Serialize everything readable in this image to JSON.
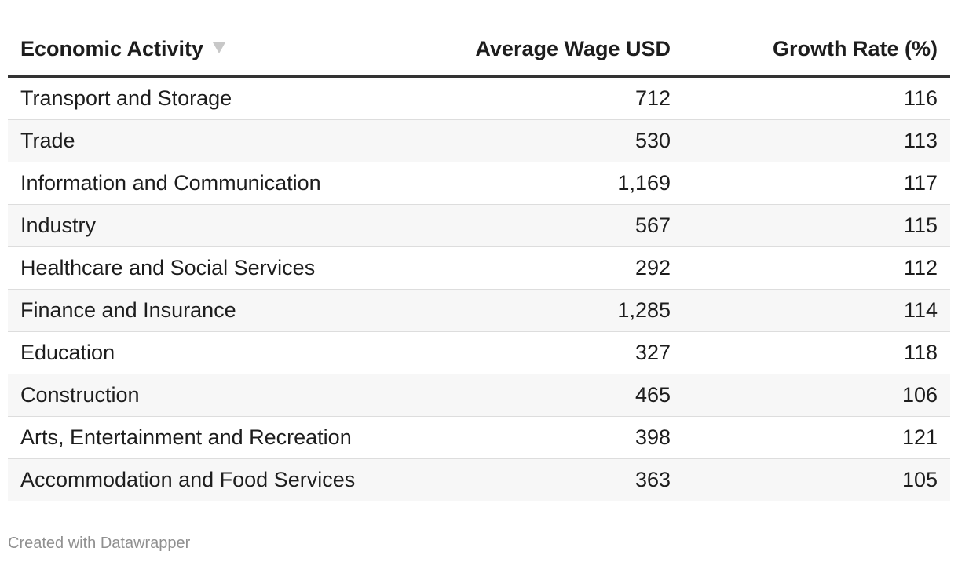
{
  "chart_data": {
    "type": "table",
    "columns": [
      "Economic Activity",
      "Average Wage USD",
      "Growth Rate (%)"
    ],
    "sorted_column": "Economic Activity",
    "sort_icon": "sort-descending-icon",
    "rows": [
      [
        "Transport and Storage",
        "712",
        "116"
      ],
      [
        "Trade",
        "530",
        "113"
      ],
      [
        "Information and Communication",
        "1,169",
        "117"
      ],
      [
        "Industry",
        "567",
        "115"
      ],
      [
        "Healthcare and Social Services",
        "292",
        "112"
      ],
      [
        "Finance and Insurance",
        "1,285",
        "114"
      ],
      [
        "Education",
        "327",
        "118"
      ],
      [
        "Construction",
        "465",
        "106"
      ],
      [
        "Arts, Entertainment and Recreation",
        "398",
        "121"
      ],
      [
        "Accommodation and Food Services",
        "363",
        "105"
      ]
    ]
  },
  "footer": {
    "credit": "Created with Datawrapper"
  }
}
